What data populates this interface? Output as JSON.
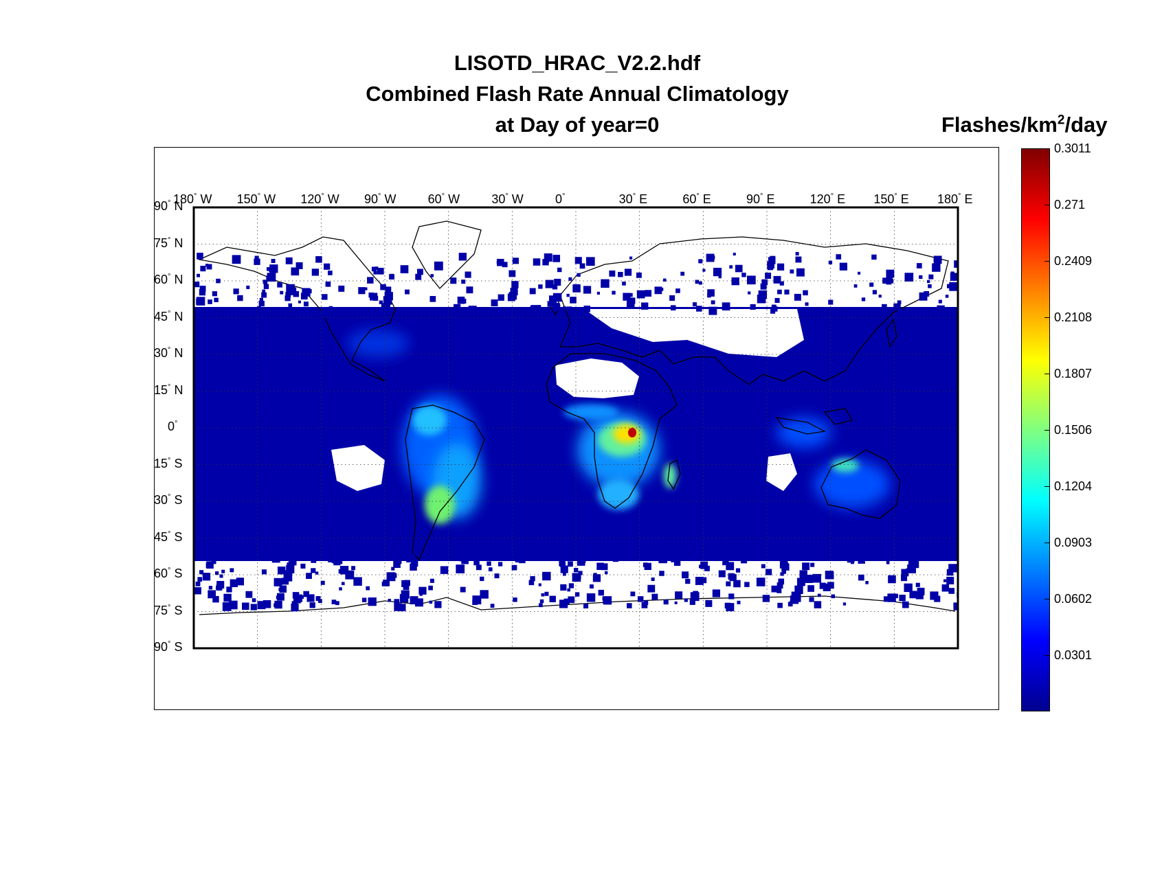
{
  "title": {
    "line1": "LISOTD_HRAC_V2.2.hdf",
    "line2": "Combined Flash Rate Annual Climatology",
    "line3": "at Day of year=0"
  },
  "colorbar": {
    "units_prefix": "Flashes/km",
    "units_exp": "2",
    "units_suffix": "/day",
    "min": 0,
    "max": 0.3011,
    "colormap": "jet",
    "ticks": [
      "0.3011",
      "0.271",
      "0.2409",
      "0.2108",
      "0.1807",
      "0.1506",
      "0.1204",
      "0.0903",
      "0.0602",
      "0.0301"
    ],
    "colors": [
      "#00008f",
      "#0000ff",
      "#0080ff",
      "#00ffff",
      "#80ff80",
      "#ffff00",
      "#ff8000",
      "#ff0000",
      "#800000"
    ]
  },
  "map": {
    "projection": "equirectangular",
    "lon_range": [
      -180,
      180
    ],
    "lat_range": [
      -90,
      90
    ],
    "grid": "dotted",
    "lon_labels": [
      {
        "v": "180",
        "h": "W"
      },
      {
        "v": "150",
        "h": "W"
      },
      {
        "v": "120",
        "h": "W"
      },
      {
        "v": "90",
        "h": "W"
      },
      {
        "v": "60",
        "h": "W"
      },
      {
        "v": "30",
        "h": "W"
      },
      {
        "v": "0",
        "h": ""
      },
      {
        "v": "30",
        "h": "E"
      },
      {
        "v": "60",
        "h": "E"
      },
      {
        "v": "90",
        "h": "E"
      },
      {
        "v": "120",
        "h": "E"
      },
      {
        "v": "150",
        "h": "E"
      },
      {
        "v": "180",
        "h": "E"
      }
    ],
    "lat_labels": [
      {
        "v": "90",
        "h": "N"
      },
      {
        "v": "75",
        "h": "N"
      },
      {
        "v": "60",
        "h": "N"
      },
      {
        "v": "45",
        "h": "N"
      },
      {
        "v": "30",
        "h": "N"
      },
      {
        "v": "15",
        "h": "N"
      },
      {
        "v": "0",
        "h": ""
      },
      {
        "v": "15",
        "h": "S"
      },
      {
        "v": "30",
        "h": "S"
      },
      {
        "v": "45",
        "h": "S"
      },
      {
        "v": "60",
        "h": "S"
      },
      {
        "v": "75",
        "h": "S"
      },
      {
        "v": "90",
        "h": "S"
      }
    ],
    "hotspots": [
      {
        "region": "Central Africa (Congo)",
        "lon": 28,
        "lat": -1,
        "value": 0.3
      },
      {
        "region": "Central Africa",
        "lon": 22,
        "lat": -3,
        "value": 0.18
      },
      {
        "region": "Madagascar",
        "lon": 47,
        "lat": -18,
        "value": 0.14
      },
      {
        "region": "Southern Africa",
        "lon": 28,
        "lat": -26,
        "value": 0.12
      },
      {
        "region": "South America (La Plata)",
        "lon": -58,
        "lat": -28,
        "value": 0.16
      },
      {
        "region": "South America (Amazon)",
        "lon": -62,
        "lat": -5,
        "value": 0.09
      },
      {
        "region": "Northern Australia",
        "lon": 133,
        "lat": -14,
        "value": 0.12
      },
      {
        "region": "Maritime Continent",
        "lon": 110,
        "lat": -2,
        "value": 0.07
      }
    ]
  }
}
